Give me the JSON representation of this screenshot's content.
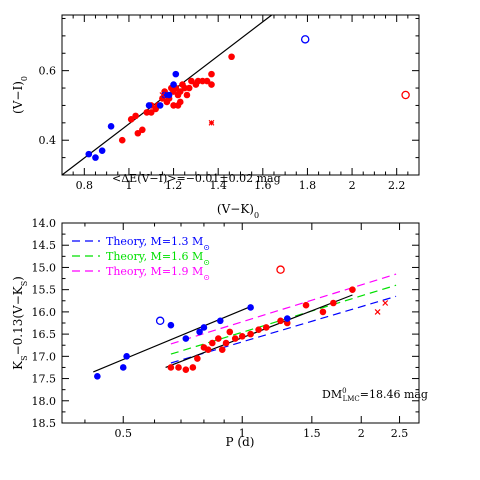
{
  "chart_data": [
    {
      "type": "scatter",
      "xlabel": "(V−K)",
      "xlabel_sub": "0",
      "ylabel": "(V−I)",
      "ylabel_sub": "0",
      "xlim": [
        0.7,
        2.3
      ],
      "ylim": [
        0.3,
        0.76
      ],
      "xticks": [
        "0.8",
        "1",
        "1.2",
        "1.4",
        "1.6",
        "1.8",
        "2",
        "2.2"
      ],
      "yticks": [
        "0.4",
        "0.6"
      ],
      "annotation": "<ΔE(V−I)>=−0.01±0.02 mag",
      "fit_line": {
        "x": [
          0.7,
          1.64
        ],
        "y": [
          0.3,
          0.76
        ]
      },
      "series": [
        {
          "marker": "filled-circle",
          "color": "#ff0000",
          "points": [
            [
              0.97,
              0.4
            ],
            [
              1.01,
              0.46
            ],
            [
              1.03,
              0.47
            ],
            [
              1.04,
              0.42
            ],
            [
              1.06,
              0.43
            ],
            [
              1.08,
              0.48
            ],
            [
              1.1,
              0.48
            ],
            [
              1.1,
              0.5
            ],
            [
              1.12,
              0.49
            ],
            [
              1.13,
              0.5
            ],
            [
              1.15,
              0.52
            ],
            [
              1.16,
              0.54
            ],
            [
              1.17,
              0.51
            ],
            [
              1.18,
              0.52
            ],
            [
              1.19,
              0.55
            ],
            [
              1.2,
              0.5
            ],
            [
              1.2,
              0.54
            ],
            [
              1.21,
              0.55
            ],
            [
              1.22,
              0.53
            ],
            [
              1.23,
              0.54
            ],
            [
              1.23,
              0.51
            ],
            [
              1.24,
              0.56
            ],
            [
              1.25,
              0.55
            ],
            [
              1.26,
              0.53
            ],
            [
              1.27,
              0.55
            ],
            [
              1.28,
              0.57
            ],
            [
              1.3,
              0.56
            ],
            [
              1.31,
              0.57
            ],
            [
              1.33,
              0.57
            ],
            [
              1.35,
              0.57
            ],
            [
              1.37,
              0.59
            ],
            [
              1.37,
              0.56
            ],
            [
              1.46,
              0.64
            ],
            [
              1.22,
              0.5
            ]
          ]
        },
        {
          "marker": "filled-circle",
          "color": "#0000ff",
          "points": [
            [
              0.82,
              0.36
            ],
            [
              0.85,
              0.35
            ],
            [
              0.88,
              0.37
            ],
            [
              0.92,
              0.44
            ],
            [
              1.09,
              0.5
            ],
            [
              1.14,
              0.5
            ],
            [
              1.16,
              0.53
            ],
            [
              1.18,
              0.53
            ],
            [
              1.2,
              0.56
            ],
            [
              1.21,
              0.59
            ]
          ]
        },
        {
          "marker": "x",
          "color": "#ff0000",
          "points": [
            [
              1.15,
              0.53
            ]
          ]
        },
        {
          "marker": "star",
          "color": "#ff0000",
          "points": [
            [
              1.37,
              0.45
            ]
          ]
        },
        {
          "marker": "open-circle",
          "color": "#0000ff",
          "points": [
            [
              1.79,
              0.69
            ]
          ]
        },
        {
          "marker": "open-circle",
          "color": "#ff0000",
          "points": [
            [
              2.24,
              0.53
            ]
          ]
        }
      ]
    },
    {
      "type": "scatter",
      "xscale": "log",
      "xlabel": "P (d)",
      "ylabel_pre": "K",
      "ylabel_pre_sub": "S",
      "ylabel_mid": "−0.13(V−K",
      "ylabel_mid_sub": "S",
      "ylabel_end": ")",
      "xlim": [
        0.35,
        2.8
      ],
      "ylim": [
        18.5,
        14.0
      ],
      "xticks": [
        "0.5",
        "1",
        "1.5",
        "2",
        "2.5"
      ],
      "xtick_values": [
        0.5,
        1,
        1.5,
        2,
        2.5
      ],
      "yticks": [
        "14.0",
        "14.5",
        "15.0",
        "15.5",
        "16.0",
        "16.5",
        "17.0",
        "17.5",
        "18.0",
        "18.5"
      ],
      "ytick_values": [
        14.0,
        14.5,
        15.0,
        15.5,
        16.0,
        16.5,
        17.0,
        17.5,
        18.0,
        18.5
      ],
      "annotation_main": "DM",
      "annotation_sup": "0",
      "annotation_sub": "LMC",
      "annotation_rest": "=18.46 mag",
      "legend": [
        {
          "label": "Theory, M=1.3 M",
          "sub": "⊙",
          "color": "#0000ff"
        },
        {
          "label": "Theory, M=1.6 M",
          "sub": "⊙",
          "color": "#00e000"
        },
        {
          "label": "Theory, M=1.9 M",
          "sub": "⊙",
          "color": "#ff00ff"
        }
      ],
      "theory_lines": [
        {
          "color": "#0000ff",
          "x": [
            0.66,
            2.45
          ],
          "y": [
            17.15,
            15.65
          ]
        },
        {
          "color": "#00e000",
          "x": [
            0.66,
            2.45
          ],
          "y": [
            16.95,
            15.4
          ]
        },
        {
          "color": "#ff00ff",
          "x": [
            0.66,
            2.45
          ],
          "y": [
            16.72,
            15.15
          ]
        }
      ],
      "fit_lines": [
        {
          "color": "#000000",
          "x": [
            0.42,
            1.05
          ],
          "y": [
            17.35,
            15.88
          ]
        },
        {
          "color": "#000000",
          "x": [
            0.64,
            1.9
          ],
          "y": [
            17.25,
            15.62
          ]
        }
      ],
      "series": [
        {
          "marker": "filled-circle",
          "color": "#ff0000",
          "points": [
            [
              0.66,
              17.25
            ],
            [
              0.69,
              17.25
            ],
            [
              0.72,
              17.3
            ],
            [
              0.75,
              17.25
            ],
            [
              0.77,
              17.05
            ],
            [
              0.8,
              16.8
            ],
            [
              0.82,
              16.85
            ],
            [
              0.84,
              16.7
            ],
            [
              0.87,
              16.6
            ],
            [
              0.89,
              16.85
            ],
            [
              0.91,
              16.7
            ],
            [
              0.93,
              16.45
            ],
            [
              0.96,
              16.6
            ],
            [
              1.0,
              16.55
            ],
            [
              1.05,
              16.5
            ],
            [
              1.1,
              16.4
            ],
            [
              1.15,
              16.35
            ],
            [
              1.25,
              16.2
            ],
            [
              1.3,
              16.25
            ],
            [
              1.45,
              15.85
            ],
            [
              1.6,
              16.0
            ],
            [
              1.7,
              15.8
            ],
            [
              1.9,
              15.5
            ]
          ]
        },
        {
          "marker": "filled-circle",
          "color": "#0000ff",
          "points": [
            [
              0.43,
              17.45
            ],
            [
              0.5,
              17.25
            ],
            [
              0.51,
              17.0
            ],
            [
              0.66,
              16.3
            ],
            [
              0.72,
              16.6
            ],
            [
              0.78,
              16.45
            ],
            [
              0.8,
              16.35
            ],
            [
              0.88,
              16.2
            ],
            [
              1.05,
              15.9
            ],
            [
              1.3,
              16.15
            ]
          ]
        },
        {
          "marker": "x",
          "color": "#ff0000",
          "points": [
            [
              2.2,
              16.0
            ],
            [
              2.3,
              15.8
            ]
          ]
        },
        {
          "marker": "open-circle",
          "color": "#0000ff",
          "points": [
            [
              0.62,
              16.2
            ]
          ]
        },
        {
          "marker": "open-circle",
          "color": "#ff0000",
          "points": [
            [
              1.25,
              15.05
            ]
          ]
        }
      ]
    }
  ]
}
